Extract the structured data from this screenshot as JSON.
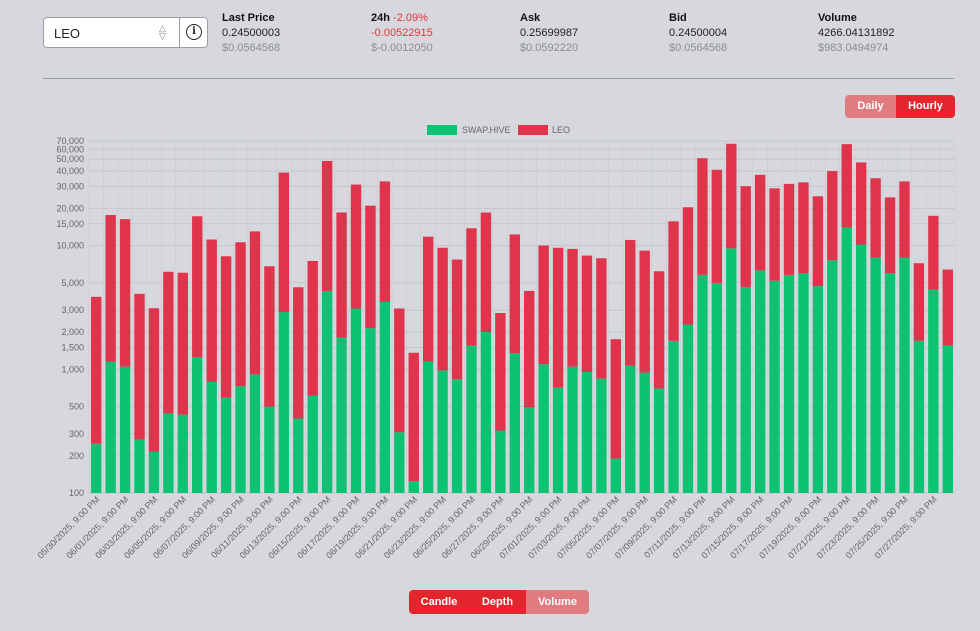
{
  "selector": {
    "value": "LEO",
    "info_icon": "info-icon"
  },
  "stats": [
    {
      "label": "Last Price",
      "extra": "",
      "value": "0.24500003",
      "sub": "$0.0564568"
    },
    {
      "label": "24h",
      "extra": "-2.09%",
      "value": "-0.00522915",
      "sub": "$-0.0012050"
    },
    {
      "label": "Ask",
      "extra": "",
      "value": "0.25699987",
      "sub": "$0.0592220"
    },
    {
      "label": "Bid",
      "extra": "",
      "value": "0.24500004",
      "sub": "$0.0564568"
    },
    {
      "label": "Volume",
      "extra": "",
      "value": "4266.04131892",
      "sub": "$983.0494974"
    }
  ],
  "interval_toggle": {
    "daily": "Daily",
    "hourly": "Hourly",
    "active": "Hourly"
  },
  "chart_tabs": {
    "candle": "Candle",
    "depth": "Depth",
    "volume": "Volume",
    "active": "Volume"
  },
  "colors": {
    "swaphive": "#0dc273",
    "leo": "#e0334c",
    "active_button": "#e3262e",
    "inactive_button": "#e07b80"
  },
  "chart_data": {
    "type": "bar",
    "stacked": true,
    "yscale": "log",
    "ylim": [
      100,
      70000
    ],
    "yticks": [
      100,
      200,
      300,
      500,
      1000,
      1500,
      2000,
      3000,
      5000,
      10000,
      15000,
      20000,
      30000,
      40000,
      50000,
      60000,
      70000
    ],
    "ytick_labels": [
      "100",
      "200",
      "300",
      "500",
      "1,000",
      "1,500",
      "2,000",
      "3,000",
      "5,000",
      "10,000",
      "15,000",
      "20,000",
      "30,000",
      "40,000",
      "50,000",
      "60,000",
      "70,000"
    ],
    "legend_position": "top",
    "xtick_labels": [
      "05/30/2025, 9:00 PM",
      "06/01/2025, 9:00 PM",
      "06/03/2025, 9:00 PM",
      "06/05/2025, 9:00 PM",
      "06/07/2025, 9:00 PM",
      "06/09/2025, 9:00 PM",
      "06/11/2025, 9:00 PM",
      "06/13/2025, 9:00 PM",
      "06/15/2025, 9:00 PM",
      "06/17/2025, 9:00 PM",
      "06/19/2025, 9:00 PM",
      "06/21/2025, 9:00 PM",
      "06/23/2025, 9:00 PM",
      "06/25/2025, 9:00 PM",
      "06/27/2025, 9:00 PM",
      "06/29/2025, 9:00 PM",
      "07/01/2025, 9:00 PM",
      "07/03/2025, 9:00 PM",
      "07/05/2025, 9:00 PM",
      "07/07/2025, 9:00 PM",
      "07/09/2025, 9:00 PM",
      "07/11/2025, 9:00 PM",
      "07/13/2025, 9:00 PM",
      "07/15/2025, 9:00 PM",
      "07/17/2025, 9:00 PM",
      "07/19/2025, 9:00 PM",
      "07/21/2025, 9:00 PM",
      "07/23/2025, 9:00 PM",
      "07/25/2025, 9:00 PM",
      "07/27/2025, 9:00 PM"
    ],
    "series": [
      {
        "name": "SWAP.HIVE",
        "values": [
          250,
          1150,
          1050,
          270,
          215,
          440,
          430,
          1250,
          790,
          590,
          730,
          910,
          500,
          2900,
          400,
          610,
          4300,
          1800,
          3100,
          2150,
          3500,
          310,
          125,
          1150,
          980,
          830,
          1550,
          2000,
          320,
          1350,
          490,
          1100,
          710,
          1050,
          950,
          840,
          190,
          1070,
          940,
          700,
          1700,
          2300,
          5800,
          5000,
          9500,
          4600,
          6300,
          5200,
          5800,
          6000,
          4700,
          7600,
          14000,
          10200,
          8000,
          6000,
          8000,
          1700,
          4400,
          1550
        ]
      },
      {
        "name": "LEO",
        "values": [
          3600,
          16500,
          15300,
          3800,
          2900,
          5700,
          5600,
          16000,
          10400,
          7600,
          9900,
          12100,
          6300,
          36000,
          4200,
          6900,
          44000,
          16700,
          28000,
          18850,
          29500,
          2790,
          1235,
          10650,
          8620,
          6870,
          12250,
          16500,
          2530,
          10950,
          3810,
          8900,
          8890,
          8350,
          7350,
          7060,
          1560,
          10030,
          8160,
          5500,
          14000,
          18100,
          45000,
          36000,
          57000,
          25600,
          31000,
          23800,
          25700,
          26400,
          20300,
          32400,
          52000,
          36800,
          27000,
          18500,
          25000,
          5500,
          13000,
          4850
        ]
      }
    ]
  }
}
